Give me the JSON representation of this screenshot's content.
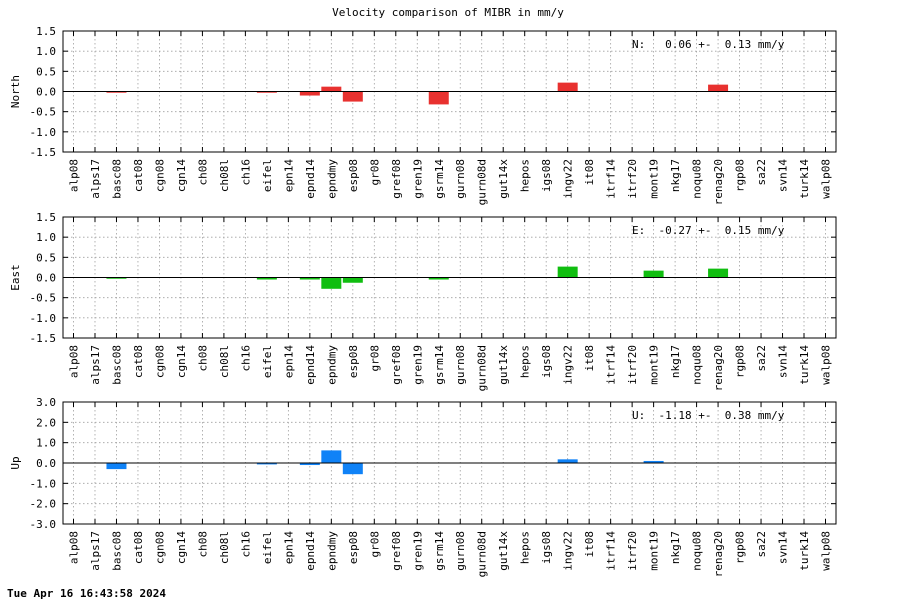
{
  "chart_data": {
    "type": "bar",
    "title": "Velocity comparison of MIBR in mm/y",
    "categories": [
      "alp08",
      "alps17",
      "basc08",
      "cat08",
      "cgn08",
      "cgn14",
      "ch08",
      "ch08l",
      "ch16",
      "eifel",
      "epn14",
      "epnd14",
      "epndmy",
      "esp08",
      "gr08",
      "gref08",
      "gren19",
      "gsrm14",
      "gurn08",
      "gurn08d",
      "gut14x",
      "hepos",
      "igs08",
      "ingv22",
      "it08",
      "itrf14",
      "itrf20",
      "mont19",
      "nkg17",
      "noqu08",
      "renag20",
      "rgp08",
      "sa22",
      "svn14",
      "turk14",
      "walp08"
    ],
    "grid": true,
    "panels": [
      {
        "name": "north",
        "ylabel": "North",
        "ylim": [
          -1.5,
          1.5
        ],
        "yticks": [
          "1.5",
          "1.0",
          "0.5",
          "0.0",
          "-0.5",
          "-1.0",
          "-1.5"
        ],
        "color": "#e8312f",
        "stat": "N:   0.06 +-  0.13 mm/y",
        "values": [
          0,
          0,
          -0.03,
          0,
          0,
          0,
          0,
          0,
          0,
          -0.03,
          0,
          -0.1,
          0.12,
          -0.25,
          0,
          0,
          0,
          -0.32,
          0,
          0,
          0,
          0,
          0,
          0.22,
          0,
          0,
          0,
          0,
          0,
          0,
          0.17,
          0,
          0,
          0,
          0,
          0
        ]
      },
      {
        "name": "east",
        "ylabel": "East",
        "ylim": [
          -1.5,
          1.5
        ],
        "yticks": [
          "1.5",
          "1.0",
          "0.5",
          "0.0",
          "-0.5",
          "-1.0",
          "-1.5"
        ],
        "color": "#10be10",
        "stat": "E:  -0.27 +-  0.15 mm/y",
        "values": [
          0,
          0,
          -0.03,
          0,
          0,
          0,
          0,
          0,
          0,
          -0.05,
          0,
          -0.05,
          -0.28,
          -0.13,
          0,
          0,
          0,
          -0.05,
          0,
          0,
          0,
          0,
          0,
          0.27,
          0,
          0,
          0,
          0.17,
          0,
          0,
          0.22,
          0,
          0,
          0,
          0,
          0
        ]
      },
      {
        "name": "up",
        "ylabel": "Up",
        "ylim": [
          -3.0,
          3.0
        ],
        "yticks": [
          "3.0",
          "2.0",
          "1.0",
          "0.0",
          "-1.0",
          "-2.0",
          "-3.0"
        ],
        "color": "#0f82f7",
        "stat": "U:  -1.18 +-  0.38 mm/y",
        "values": [
          0,
          0,
          -0.3,
          0,
          0,
          0,
          0,
          0,
          0,
          -0.07,
          0,
          -0.1,
          0.62,
          -0.55,
          0,
          0,
          0,
          0,
          0,
          0,
          0,
          0,
          0,
          0.18,
          0,
          0,
          0,
          0.1,
          0,
          0,
          0,
          0,
          0,
          0,
          0,
          0
        ]
      }
    ]
  },
  "footer": {
    "timestamp": "Tue Apr 16 16:43:58 2024"
  }
}
